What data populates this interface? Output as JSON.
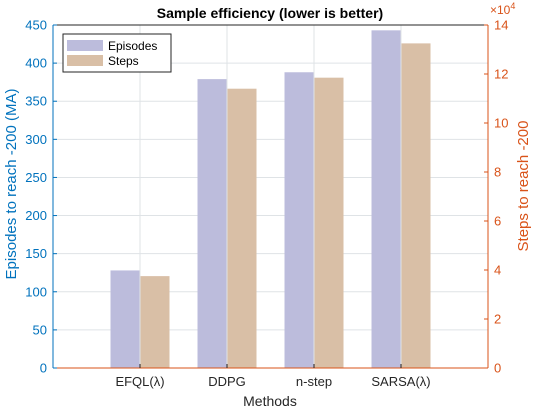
{
  "chart_data": {
    "type": "bar",
    "title": "Sample efficiency (lower is better)",
    "xlabel": "Methods",
    "ylabel_left": "Episodes to reach -200 (MA)",
    "ylabel_right": "Steps to reach -200",
    "right_axis_exponent": "10^4",
    "categories": [
      "EFQL(λ)",
      "DDPG",
      "n-step",
      "SARSA(λ)"
    ],
    "series": [
      {
        "name": "Episodes",
        "axis": "left",
        "color": "#bcbcdc",
        "values": [
          128,
          379,
          388,
          443
        ]
      },
      {
        "name": "Steps",
        "axis": "right",
        "color": "#d9bfa6",
        "values": [
          37500,
          114000,
          118500,
          132500
        ]
      }
    ],
    "ylim_left": [
      0,
      450
    ],
    "yticks_left": [
      0,
      50,
      100,
      150,
      200,
      250,
      300,
      350,
      400,
      450
    ],
    "ylim_right": [
      0,
      140000
    ],
    "yticks_right": [
      0,
      20000,
      40000,
      60000,
      80000,
      100000,
      120000,
      140000
    ],
    "yticklabels_right": [
      "0",
      "2",
      "4",
      "6",
      "8",
      "10",
      "12",
      "14"
    ],
    "grid": true,
    "legend_placement": "top-left",
    "left_axis_color": "#0072bd",
    "right_axis_color": "#d95319"
  }
}
